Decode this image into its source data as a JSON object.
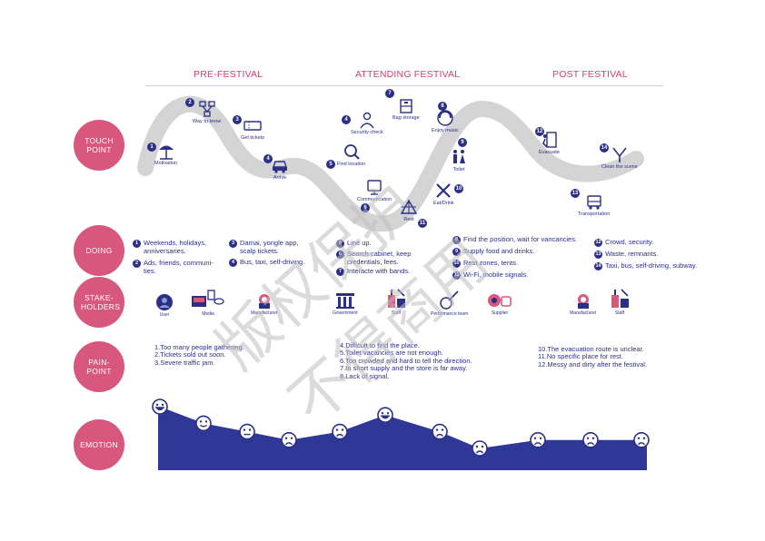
{
  "phases": [
    "PRE-FESTIVAL",
    "ATTENDING FESTIVAL",
    "POST FESTIVAL"
  ],
  "rows": {
    "touch_point": "TOUCH POINT",
    "doing": "DOING",
    "stakeholders": "STAKE- HOLDERS",
    "pain_point": "PAIN- POINT",
    "emotion": "EMOTION"
  },
  "touch_points": [
    {
      "num": "1",
      "label": "Motivation",
      "icon": "beach-umbrella-icon"
    },
    {
      "num": "2",
      "label": "Way to know",
      "icon": "network-icon"
    },
    {
      "num": "3",
      "label": "Get tickets",
      "icon": "ticket-icon"
    },
    {
      "num": "4",
      "label": "Arrive",
      "icon": "car-icon"
    },
    {
      "num": "4",
      "label": "Security check",
      "icon": "security-guard-icon"
    },
    {
      "num": "5",
      "label": "Find location",
      "icon": "search-location-icon"
    },
    {
      "num": "6",
      "label": "Communication",
      "icon": "communication-icon"
    },
    {
      "num": "7",
      "label": "Bag storage",
      "icon": "bag-storage-icon"
    },
    {
      "num": "8",
      "label": "Enjoy music",
      "icon": "music-icon"
    },
    {
      "num": "9",
      "label": "Toilet",
      "icon": "toilet-icon"
    },
    {
      "num": "10",
      "label": "Eat/Drink",
      "icon": "fork-knife-icon"
    },
    {
      "num": "11",
      "label": "Rest",
      "icon": "tent-icon"
    },
    {
      "num": "12",
      "label": "Evacuate",
      "icon": "exit-icon"
    },
    {
      "num": "13",
      "label": "Transportation",
      "icon": "bus-icon"
    },
    {
      "num": "14",
      "label": "Clean the scene",
      "icon": "cleaning-icon"
    }
  ],
  "doing": [
    {
      "num": "1",
      "text": "Weekends, holidays,\nanniversaries."
    },
    {
      "num": "2",
      "text": "Ads, friends, communi-\nties."
    },
    {
      "num": "3",
      "text": "Damai, yongle app,\nscalp tickets."
    },
    {
      "num": "4",
      "text": "Bus, taxi, self-driving."
    },
    {
      "num": "5",
      "text": "Line up."
    },
    {
      "num": "6",
      "text": "Search cabinet, keep\ncredentials, fees."
    },
    {
      "num": "7",
      "text": "Interacte with bands."
    },
    {
      "num": "8",
      "text": "Find the position, wait for vancancies."
    },
    {
      "num": "9",
      "text": "Supply food and drinks."
    },
    {
      "num": "10",
      "text": "Rest zones, tents."
    },
    {
      "num": "11",
      "text": "Wi-Fi, mobile signals."
    },
    {
      "num": "12",
      "text": "Crowd, security."
    },
    {
      "num": "13",
      "text": "Waste, remnants."
    },
    {
      "num": "14",
      "text": "Taxi, bus, self-driving, subway."
    }
  ],
  "stakeholders": [
    {
      "label": "User",
      "icon": "user-icon"
    },
    {
      "label": "Media",
      "icon": "media-icon"
    },
    {
      "label": "Manufacturer",
      "icon": "manufacturer-icon"
    },
    {
      "label": "Government",
      "icon": "government-icon"
    },
    {
      "label": "Staff",
      "icon": "staff-icon"
    },
    {
      "label": "Performance team",
      "icon": "guitar-icon"
    },
    {
      "label": "Supplier",
      "icon": "supplier-icon"
    },
    {
      "label": "Manufacturer",
      "icon": "manufacturer-icon"
    },
    {
      "label": "Staff",
      "icon": "staff-icon"
    }
  ],
  "pain_points": {
    "pre": [
      "1.Too many people gathering.",
      "2.Tickets sold out soon.",
      "3.Severe traffic jam."
    ],
    "attending": [
      "4.Difficult to find the place.",
      "5.Toilet vacancies are not enough.",
      "6.Too crowded and hard to tell the direction.",
      "7.In short supply and the store is far away.",
      "8.Lack of signal."
    ],
    "post": [
      "10.The evacuation route is unclear.",
      "11.No specific place for rest.",
      "12.Messy and dirty after the festival."
    ]
  },
  "emotion": {
    "points": [
      5,
      3,
      2,
      1,
      2,
      4,
      2,
      0,
      1,
      1,
      1
    ],
    "faces": [
      "happy",
      "smile",
      "neutral",
      "sad",
      "sad",
      "happy",
      "sad",
      "sad",
      "sad",
      "sad",
      "sad"
    ]
  },
  "watermark": "版权保护 不得商用",
  "colors": {
    "navy": "#2b2f85",
    "pink": "#d8577d",
    "phase": "#d2416d",
    "wave": "#c8c8c8"
  }
}
